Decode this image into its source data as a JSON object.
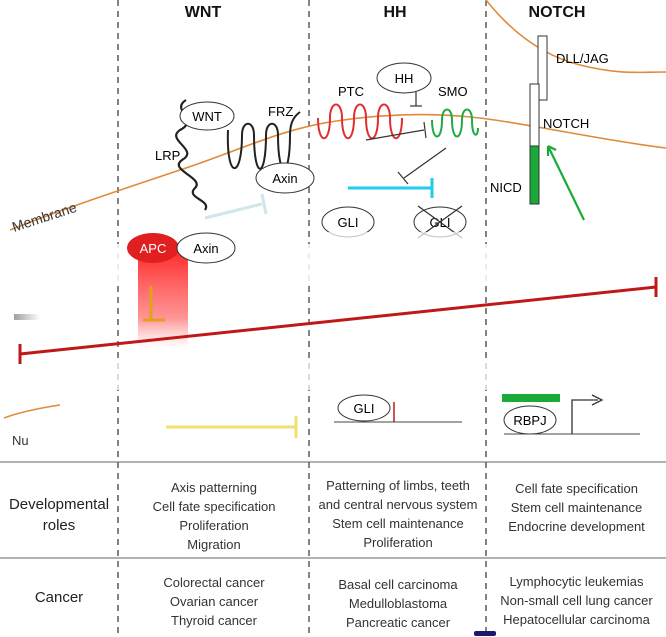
{
  "headers": {
    "wnt": "WNT",
    "hh": "HH",
    "notch": "NOTCH"
  },
  "labels": {
    "membrane": "Membrane",
    "wnt": "WNT",
    "frz": "FRZ",
    "lrp": "LRP",
    "axin_top": "Axin",
    "apc": "APC",
    "axin_bottom": "Axin",
    "nucleus_partial": "Nu",
    "hh": "HH",
    "ptc": "PTC",
    "smo": "SMO",
    "gli_left": "GLI",
    "gli_crossed": "GLI",
    "gli_nucleus": "GLI",
    "dll_jag": "DLL/JAG",
    "notch": "NOTCH",
    "nicd": "NICD",
    "rbpj": "RBPJ"
  },
  "rows": {
    "developmental": {
      "label": [
        "Developmental",
        "roles"
      ],
      "wnt": [
        "Axis patterning",
        "Cell fate specification",
        "Proliferation",
        "Migration"
      ],
      "hh": [
        "Patterning of limbs, teeth",
        "and central nervous system",
        "Stem cell maintenance",
        "Proliferation"
      ],
      "notch": [
        "Cell fate specification",
        "Stem cell maintenance",
        "Endocrine development"
      ]
    },
    "cancer": {
      "label": [
        "Cancer"
      ],
      "wnt": [
        "Colorectal cancer",
        "Ovarian cancer",
        "Thyroid cancer"
      ],
      "hh": [
        "Basal cell carcinoma",
        "Medulloblastoma",
        "Pancreatic cancer"
      ],
      "notch": [
        "Lymphocytic leukemias",
        "Non-small cell lung cancer",
        "Hepatocellular carcinoma"
      ]
    }
  },
  "colors": {
    "membrane": "#e08a3c",
    "ptc": "#e03030",
    "smo": "#22aa44",
    "inhibit_cyan": "#22ccee",
    "nicd": "#1aaa3a",
    "apc": "#e02020",
    "big_bar": "#c01818",
    "inhibit_yellow": "#f0e070",
    "inhibit_wnt": "#cfe6ea",
    "apc_inhibit": "#e0a020",
    "divider": "#555555"
  }
}
